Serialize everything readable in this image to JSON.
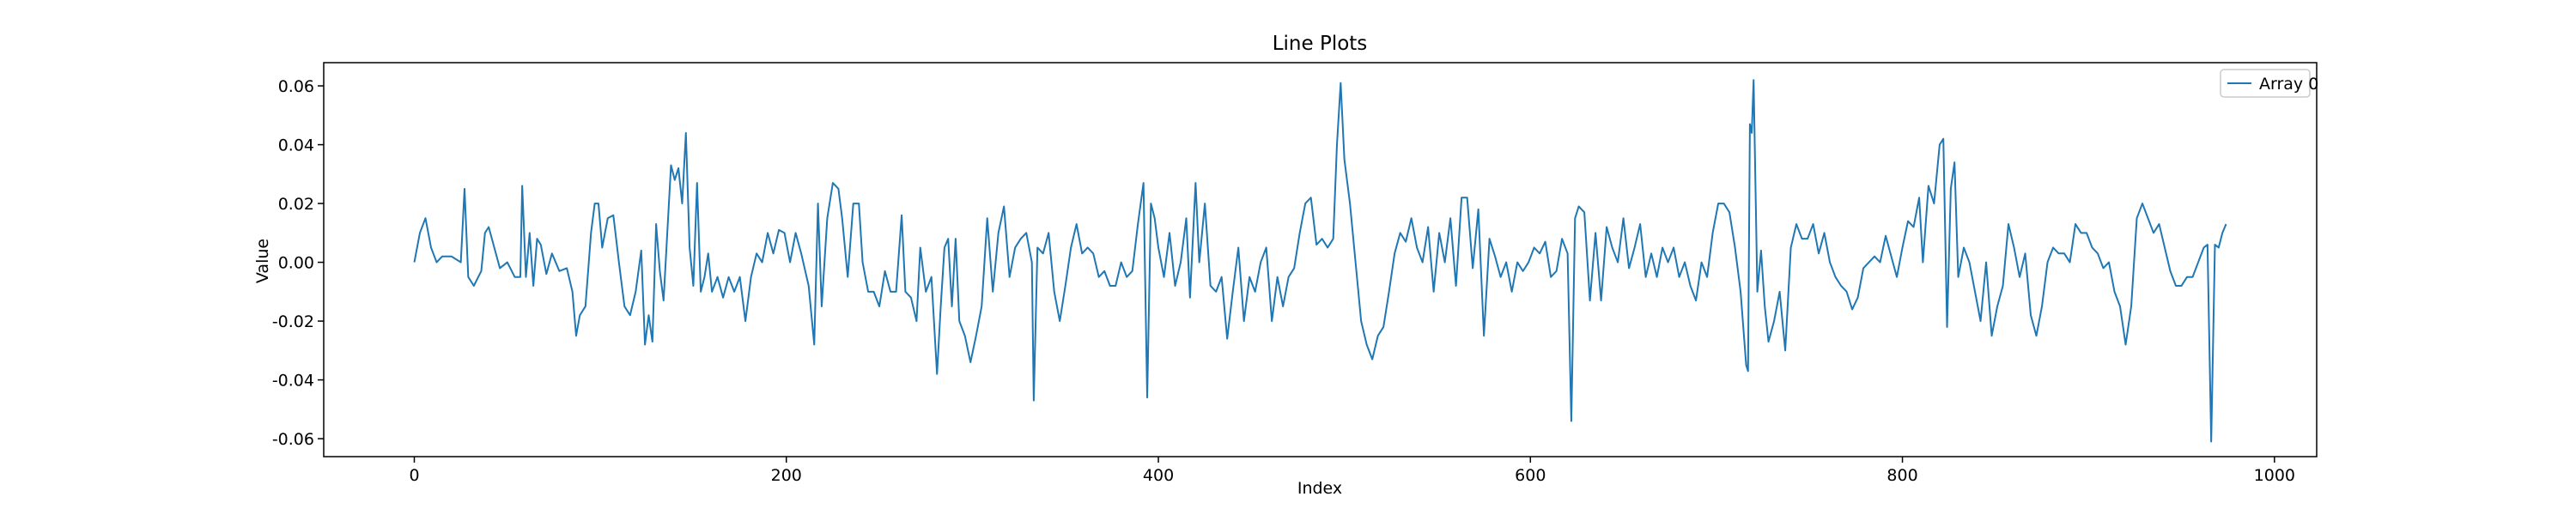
{
  "chart_data": {
    "type": "line",
    "title": "Line Plots",
    "xlabel": "Index",
    "ylabel": "Value",
    "xlim": [
      -48.7,
      1022.7
    ],
    "ylim": [
      -0.0661,
      0.0679
    ],
    "xticks": [
      0,
      200,
      400,
      600,
      800,
      1000
    ],
    "yticks": [
      -0.06,
      -0.04,
      -0.02,
      {
        "value": 0,
        "label": "0.00"
      },
      0.02,
      0.04,
      0.06
    ],
    "grid": false,
    "legend": "upper right",
    "x": [
      0,
      3,
      6,
      9,
      12,
      15,
      20,
      25,
      27,
      29,
      32,
      36,
      38,
      40,
      43,
      46,
      50,
      54,
      57,
      58,
      60,
      62,
      64,
      66,
      68,
      71,
      74,
      78,
      82,
      85,
      87,
      89,
      92,
      95,
      97,
      99,
      101,
      104,
      107,
      110,
      113,
      116,
      119,
      122,
      124,
      126,
      128,
      130,
      132,
      134,
      136,
      138,
      140,
      142,
      144,
      146,
      148,
      150,
      152,
      154,
      156,
      158,
      160,
      163,
      166,
      169,
      172,
      175,
      178,
      181,
      184,
      187,
      190,
      193,
      196,
      199,
      202,
      205,
      208,
      212,
      215,
      217,
      219,
      222,
      225,
      228,
      230,
      233,
      236,
      239,
      241,
      244,
      247,
      250,
      253,
      256,
      259,
      262,
      264,
      267,
      270,
      272,
      275,
      278,
      281,
      283,
      285,
      287,
      289,
      291,
      293,
      296,
      299,
      302,
      305,
      308,
      311,
      314,
      317,
      320,
      323,
      326,
      329,
      332,
      333,
      335,
      338,
      341,
      344,
      347,
      350,
      353,
      356,
      359,
      362,
      365,
      368,
      371,
      374,
      377,
      380,
      383,
      386,
      389,
      392,
      394,
      396,
      398,
      400,
      403,
      406,
      409,
      412,
      415,
      417,
      420,
      422,
      425,
      428,
      431,
      434,
      437,
      440,
      443,
      446,
      449,
      452,
      455,
      458,
      461,
      464,
      467,
      470,
      473,
      476,
      479,
      482,
      485,
      488,
      491,
      494,
      496,
      498,
      500,
      503,
      506,
      509,
      512,
      515,
      518,
      521,
      524,
      527,
      530,
      533,
      536,
      539,
      542,
      545,
      548,
      551,
      554,
      557,
      560,
      563,
      566,
      569,
      572,
      575,
      578,
      581,
      584,
      587,
      590,
      593,
      596,
      599,
      602,
      605,
      608,
      611,
      614,
      617,
      620,
      622,
      624,
      626,
      629,
      632,
      635,
      638,
      641,
      644,
      647,
      650,
      653,
      656,
      659,
      662,
      665,
      668,
      671,
      674,
      677,
      680,
      683,
      686,
      689,
      692,
      695,
      698,
      701,
      704,
      707,
      710,
      713,
      716,
      717,
      718,
      719,
      720,
      722,
      724,
      726,
      728,
      731,
      734,
      737,
      740,
      743,
      746,
      749,
      752,
      755,
      758,
      761,
      764,
      767,
      770,
      773,
      776,
      779,
      782,
      785,
      788,
      791,
      794,
      797,
      800,
      803,
      806,
      809,
      811,
      814,
      817,
      820,
      822,
      824,
      826,
      828,
      830,
      833,
      836,
      839,
      842,
      845,
      848,
      851,
      854,
      857,
      860,
      863,
      866,
      869,
      872,
      875,
      878,
      881,
      884,
      887,
      890,
      893,
      896,
      899,
      902,
      905,
      908,
      911,
      914,
      917,
      920,
      923,
      926,
      929,
      932,
      935,
      938,
      941,
      944,
      947,
      950,
      953,
      956,
      959,
      962,
      964,
      966,
      968,
      970,
      972,
      974
    ],
    "series": [
      {
        "name": "Array 0",
        "color": "#1f77b4",
        "values": [
          0.0,
          0.01,
          0.015,
          0.005,
          0.0,
          0.002,
          0.002,
          0.0,
          0.025,
          -0.005,
          -0.008,
          -0.003,
          0.01,
          0.012,
          0.005,
          -0.002,
          0.0,
          -0.005,
          -0.005,
          0.026,
          -0.005,
          0.01,
          -0.008,
          0.008,
          0.006,
          -0.004,
          0.003,
          -0.003,
          -0.002,
          -0.01,
          -0.025,
          -0.018,
          -0.015,
          0.01,
          0.02,
          0.02,
          0.005,
          0.015,
          0.016,
          0.0,
          -0.015,
          -0.018,
          -0.01,
          0.004,
          -0.028,
          -0.018,
          -0.027,
          0.013,
          -0.003,
          -0.013,
          0.01,
          0.033,
          0.028,
          0.032,
          0.02,
          0.044,
          0.005,
          -0.008,
          0.027,
          -0.01,
          -0.005,
          0.003,
          -0.01,
          -0.005,
          -0.012,
          -0.005,
          -0.01,
          -0.005,
          -0.02,
          -0.005,
          0.003,
          0.0,
          0.01,
          0.003,
          0.011,
          0.01,
          0.0,
          0.01,
          0.003,
          -0.008,
          -0.028,
          0.02,
          -0.015,
          0.015,
          0.027,
          0.025,
          0.015,
          -0.005,
          0.02,
          0.02,
          0.0,
          -0.01,
          -0.01,
          -0.015,
          -0.003,
          -0.01,
          -0.01,
          0.016,
          -0.01,
          -0.012,
          -0.02,
          0.005,
          -0.01,
          -0.005,
          -0.038,
          -0.015,
          0.005,
          0.008,
          -0.015,
          0.008,
          -0.02,
          -0.025,
          -0.034,
          -0.025,
          -0.015,
          0.015,
          -0.01,
          0.01,
          0.019,
          -0.005,
          0.005,
          0.008,
          0.01,
          0.0,
          -0.047,
          0.005,
          0.003,
          0.01,
          -0.01,
          -0.02,
          -0.008,
          0.005,
          0.013,
          0.003,
          0.005,
          0.003,
          -0.005,
          -0.003,
          -0.008,
          -0.008,
          0.0,
          -0.005,
          -0.003,
          0.013,
          0.027,
          -0.046,
          0.02,
          0.015,
          0.005,
          -0.005,
          0.01,
          -0.008,
          0.0,
          0.015,
          -0.012,
          0.027,
          0.0,
          0.02,
          -0.008,
          -0.01,
          -0.005,
          -0.026,
          -0.01,
          0.005,
          -0.02,
          -0.005,
          -0.01,
          0.0,
          0.005,
          -0.02,
          -0.005,
          -0.015,
          -0.005,
          -0.002,
          0.01,
          0.02,
          0.022,
          0.006,
          0.008,
          0.005,
          0.008,
          0.04,
          0.061,
          0.035,
          0.02,
          0.0,
          -0.02,
          -0.028,
          -0.033,
          -0.025,
          -0.022,
          -0.01,
          0.003,
          0.01,
          0.007,
          0.015,
          0.005,
          0.0,
          0.012,
          -0.01,
          0.01,
          0.0,
          0.015,
          -0.008,
          0.022,
          0.022,
          -0.002,
          0.018,
          -0.025,
          0.008,
          0.002,
          -0.005,
          0.0,
          -0.01,
          0.0,
          -0.003,
          0.0,
          0.005,
          0.003,
          0.007,
          -0.005,
          -0.003,
          0.008,
          0.003,
          -0.054,
          0.015,
          0.019,
          0.017,
          -0.013,
          0.01,
          -0.013,
          0.012,
          0.005,
          0.0,
          0.015,
          -0.002,
          0.005,
          0.013,
          -0.005,
          0.003,
          -0.005,
          0.005,
          0.0,
          0.005,
          -0.005,
          0.0,
          -0.008,
          -0.013,
          0.0,
          -0.005,
          0.01,
          0.02,
          0.02,
          0.017,
          0.005,
          -0.01,
          -0.035,
          -0.037,
          0.047,
          0.044,
          0.062,
          -0.01,
          0.004,
          -0.015,
          -0.027,
          -0.02,
          -0.01,
          -0.03,
          0.005,
          0.013,
          0.008,
          0.008,
          0.013,
          0.003,
          0.01,
          0.0,
          -0.005,
          -0.008,
          -0.01,
          -0.016,
          -0.012,
          -0.002,
          0.0,
          0.002,
          0.0,
          0.009,
          0.002,
          -0.005,
          0.005,
          0.014,
          0.012,
          0.022,
          0.0,
          0.026,
          0.02,
          0.04,
          0.042,
          -0.022,
          0.025,
          0.034,
          -0.005,
          0.005,
          0.0,
          -0.01,
          -0.02,
          0.0,
          -0.025,
          -0.015,
          -0.008,
          0.013,
          0.005,
          -0.005,
          0.003,
          -0.018,
          -0.025,
          -0.015,
          0.0,
          0.005,
          0.003,
          0.003,
          0.0,
          0.013,
          0.01,
          0.01,
          0.005,
          0.003,
          -0.002,
          0.0,
          -0.01,
          -0.015,
          -0.028,
          -0.015,
          0.015,
          0.02,
          0.015,
          0.01,
          0.013,
          0.005,
          -0.003,
          -0.008,
          -0.008,
          -0.005,
          -0.005,
          0.0,
          0.005,
          0.006,
          -0.061,
          0.006,
          0.005,
          0.01,
          0.013
        ]
      }
    ]
  }
}
